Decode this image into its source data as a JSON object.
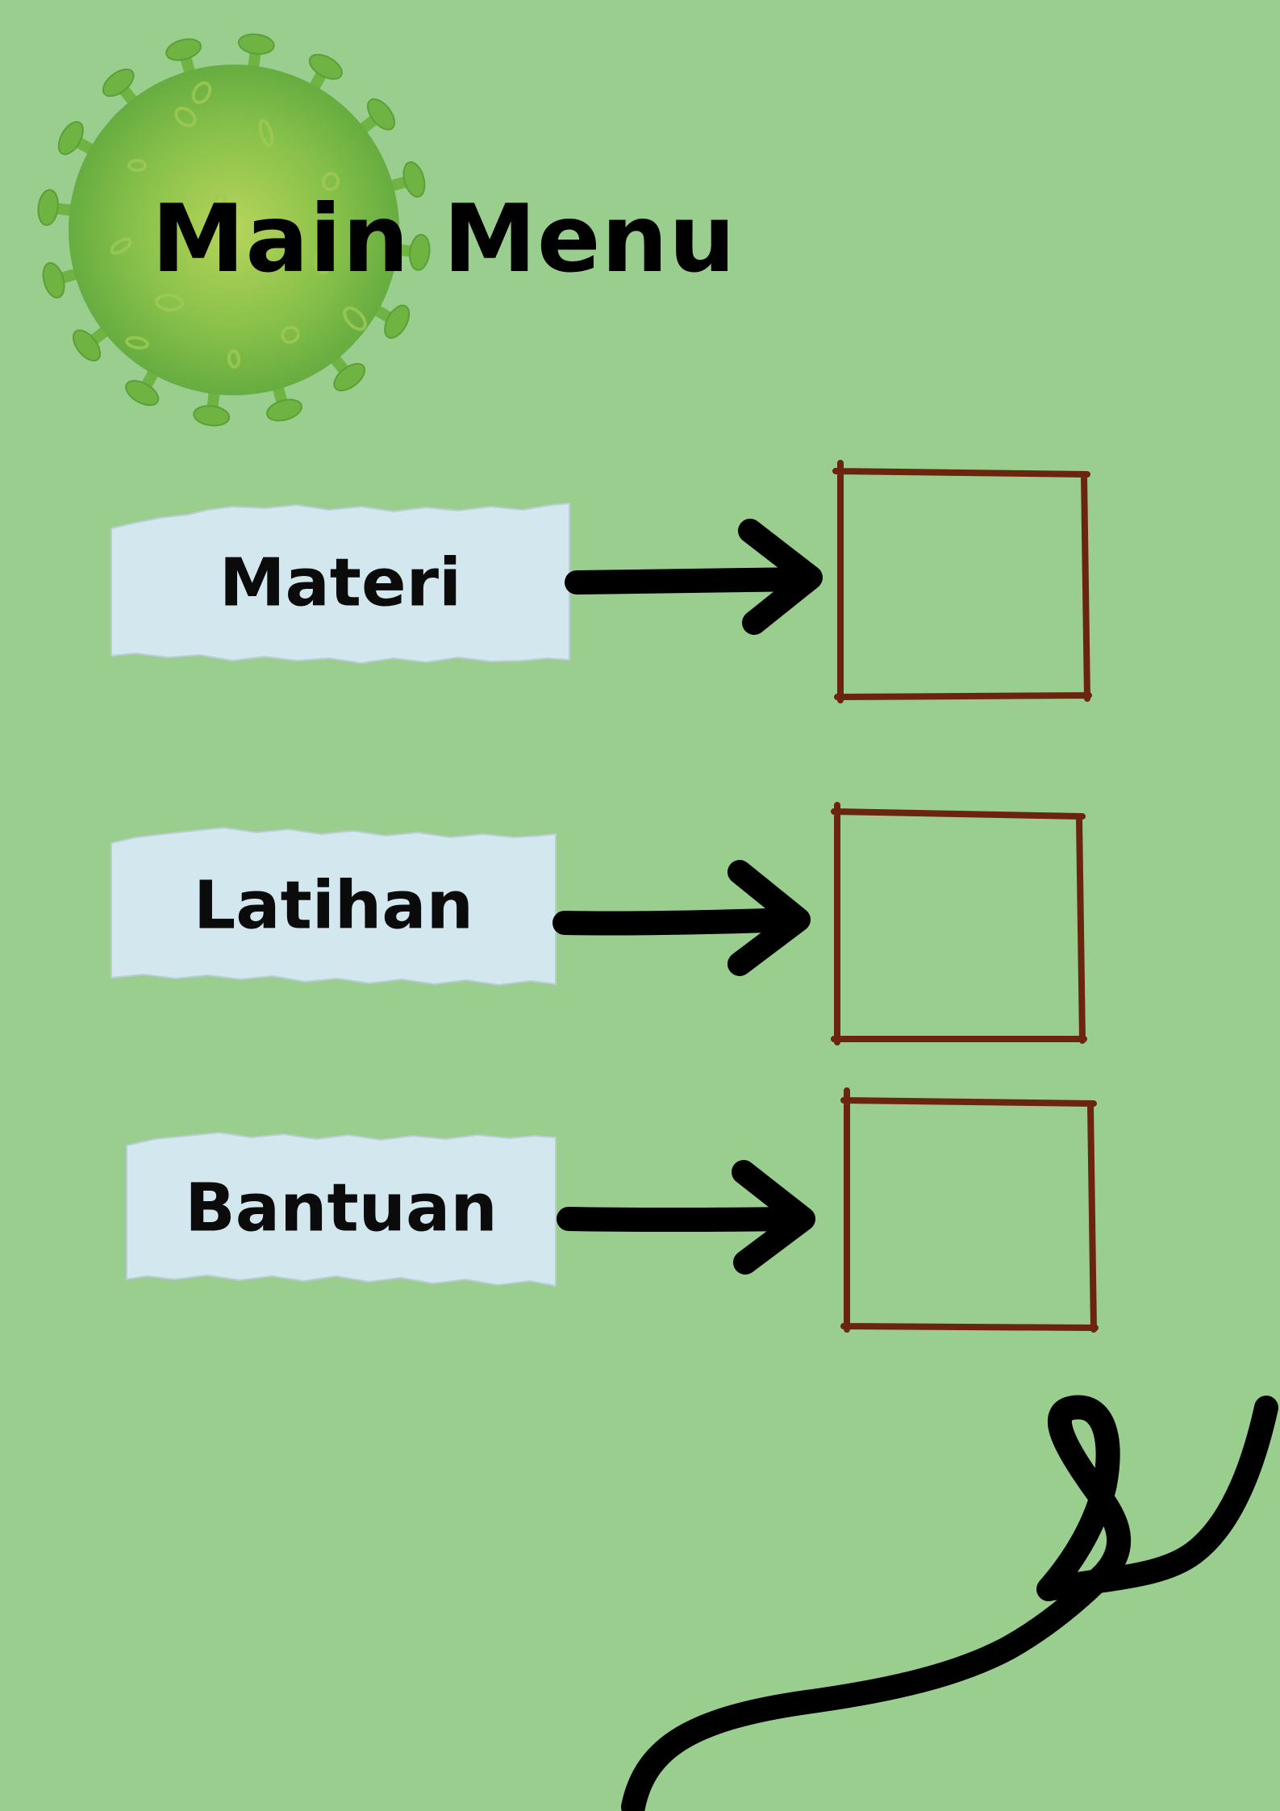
{
  "title": "Main Menu",
  "menu": [
    {
      "label": "Materi"
    },
    {
      "label": "Latihan"
    },
    {
      "label": "Bantuan"
    }
  ],
  "colors": {
    "background": "#9ace8e",
    "paper": "#d3e8ee",
    "box_outline": "#6b2410",
    "arrow": "#000000",
    "virus": "#6fb43c"
  },
  "icons": {
    "virus": "virus-icon",
    "arrow": "arrow-right-icon",
    "decoration": "squiggle-decoration"
  }
}
